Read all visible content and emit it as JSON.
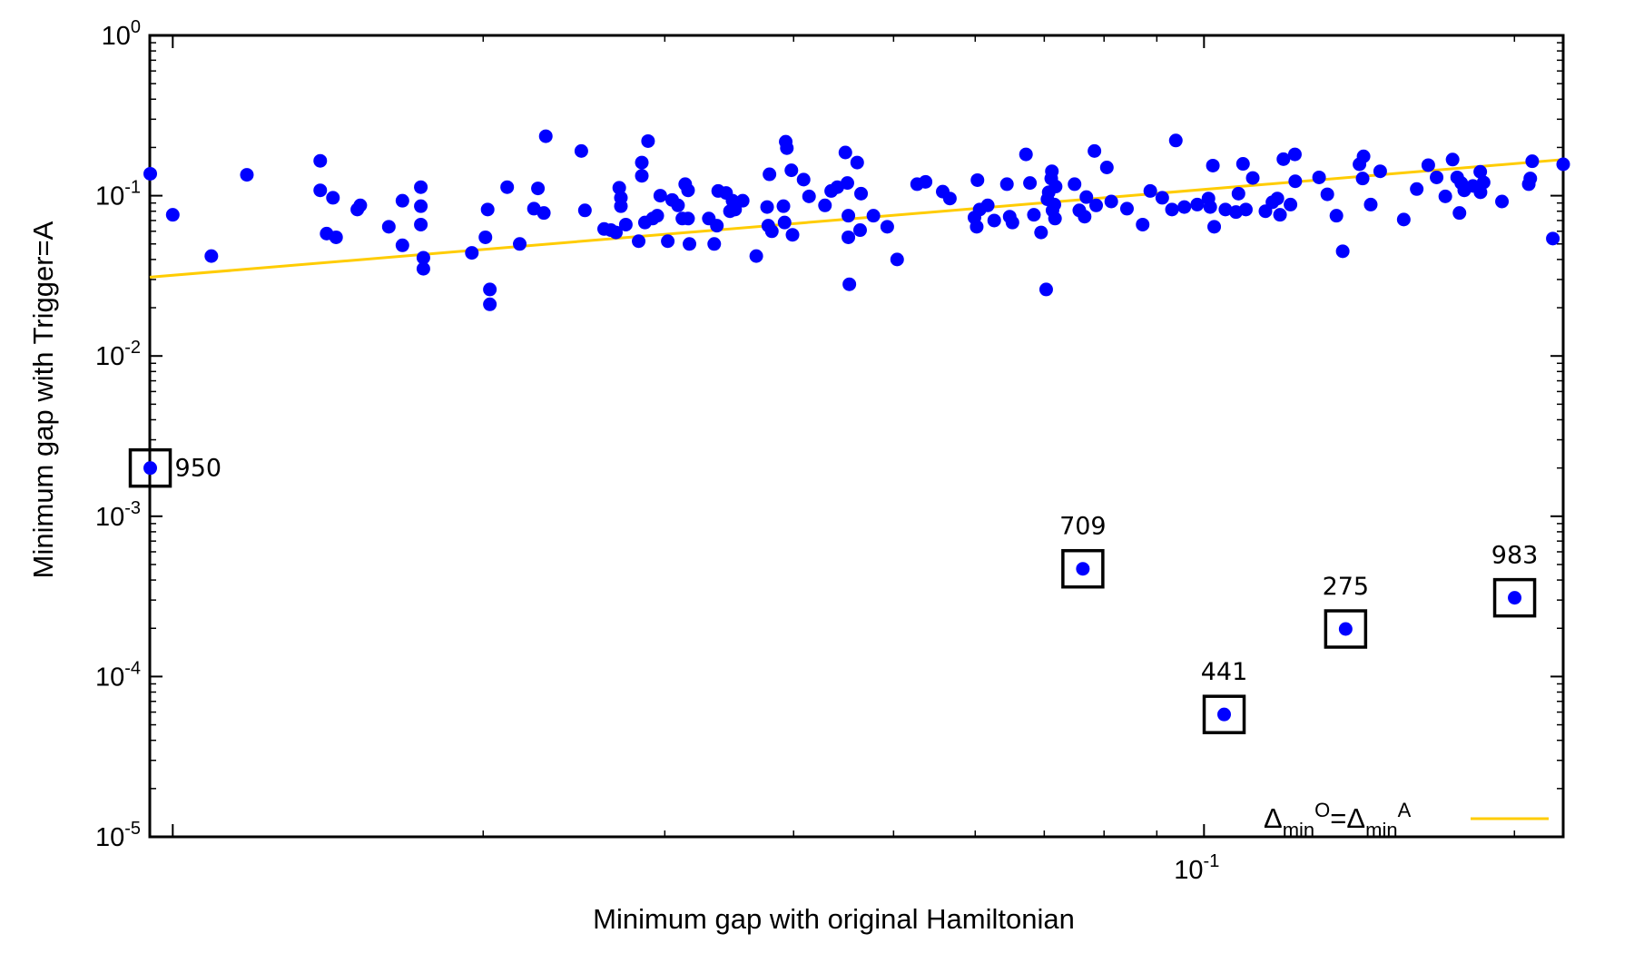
{
  "chart_data": {
    "type": "scatter",
    "title": "",
    "xlabel": "Minimum gap with original Hamiltonian",
    "ylabel": "Minimum gap with Trigger=A",
    "xscale": "log",
    "yscale": "log",
    "xlim": [
      0.0095,
      0.223
    ],
    "ylim": [
      1e-05,
      1
    ],
    "x_ticks": [
      {
        "base": "10",
        "exp": "-1",
        "value": 0.1
      }
    ],
    "y_ticks": [
      {
        "base": "10",
        "exp": "0",
        "value": 1
      },
      {
        "base": "10",
        "exp": "-1",
        "value": 0.1
      },
      {
        "base": "10",
        "exp": "-2",
        "value": 0.01
      },
      {
        "base": "10",
        "exp": "-3",
        "value": 0.001
      },
      {
        "base": "10",
        "exp": "-4",
        "value": 0.0001
      },
      {
        "base": "10",
        "exp": "-5",
        "value": 1e-05
      }
    ],
    "grid": false,
    "series": [
      {
        "marker": "circle",
        "color": "#0000ff",
        "points": [
          [
            0.00951,
            0.137
          ],
          [
            0.01,
            0.076
          ],
          [
            0.0109,
            0.042
          ],
          [
            0.0118,
            0.135
          ],
          [
            0.0139,
            0.165
          ],
          [
            0.0139,
            0.108
          ],
          [
            0.0141,
            0.058
          ],
          [
            0.0143,
            0.097
          ],
          [
            0.0144,
            0.055
          ],
          [
            0.0151,
            0.082
          ],
          [
            0.0152,
            0.087
          ],
          [
            0.0162,
            0.064
          ],
          [
            0.0167,
            0.093
          ],
          [
            0.0167,
            0.049
          ],
          [
            0.0174,
            0.113
          ],
          [
            0.0174,
            0.086
          ],
          [
            0.0174,
            0.066
          ],
          [
            0.0175,
            0.041
          ],
          [
            0.0175,
            0.035
          ],
          [
            0.0195,
            0.044
          ],
          [
            0.0201,
            0.055
          ],
          [
            0.0202,
            0.082
          ],
          [
            0.0203,
            0.026
          ],
          [
            0.0203,
            0.021
          ],
          [
            0.0211,
            0.113
          ],
          [
            0.0217,
            0.05
          ],
          [
            0.0224,
            0.083
          ],
          [
            0.0226,
            0.111
          ],
          [
            0.0229,
            0.078
          ],
          [
            0.023,
            0.235
          ],
          [
            0.0249,
            0.19
          ],
          [
            0.0251,
            0.081
          ],
          [
            0.0262,
            0.062
          ],
          [
            0.0266,
            0.061
          ],
          [
            0.0269,
            0.059
          ],
          [
            0.0271,
            0.112
          ],
          [
            0.0272,
            0.097
          ],
          [
            0.0272,
            0.086
          ],
          [
            0.0275,
            0.066
          ],
          [
            0.0283,
            0.052
          ],
          [
            0.0285,
            0.161
          ],
          [
            0.0285,
            0.133
          ],
          [
            0.0287,
            0.068
          ],
          [
            0.0289,
            0.219
          ],
          [
            0.0292,
            0.072
          ],
          [
            0.0295,
            0.075
          ],
          [
            0.0297,
            0.1
          ],
          [
            0.0302,
            0.052
          ],
          [
            0.0305,
            0.094
          ],
          [
            0.0309,
            0.087
          ],
          [
            0.0312,
            0.072
          ],
          [
            0.0314,
            0.118
          ],
          [
            0.0316,
            0.108
          ],
          [
            0.0316,
            0.072
          ],
          [
            0.0317,
            0.05
          ],
          [
            0.0331,
            0.072
          ],
          [
            0.0335,
            0.05
          ],
          [
            0.0337,
            0.065
          ],
          [
            0.0338,
            0.107
          ],
          [
            0.0344,
            0.104
          ],
          [
            0.0347,
            0.08
          ],
          [
            0.0349,
            0.093
          ],
          [
            0.0351,
            0.082
          ],
          [
            0.0357,
            0.093
          ],
          [
            0.0368,
            0.042
          ],
          [
            0.0377,
            0.085
          ],
          [
            0.0378,
            0.065
          ],
          [
            0.0379,
            0.136
          ],
          [
            0.0381,
            0.06
          ],
          [
            0.0391,
            0.086
          ],
          [
            0.0392,
            0.068
          ],
          [
            0.0393,
            0.217
          ],
          [
            0.0394,
            0.198
          ],
          [
            0.0398,
            0.144
          ],
          [
            0.0399,
            0.057
          ],
          [
            0.0409,
            0.126
          ],
          [
            0.0414,
            0.099
          ],
          [
            0.0429,
            0.087
          ],
          [
            0.0435,
            0.107
          ],
          [
            0.0441,
            0.113
          ],
          [
            0.0449,
            0.186
          ],
          [
            0.0451,
            0.12
          ],
          [
            0.0452,
            0.075
          ],
          [
            0.0452,
            0.055
          ],
          [
            0.0453,
            0.028
          ],
          [
            0.0461,
            0.161
          ],
          [
            0.0464,
            0.061
          ],
          [
            0.0465,
            0.103
          ],
          [
            0.0478,
            0.075
          ],
          [
            0.0493,
            0.064
          ],
          [
            0.0504,
            0.04
          ],
          [
            0.0527,
            0.118
          ],
          [
            0.0537,
            0.122
          ],
          [
            0.0558,
            0.106
          ],
          [
            0.0567,
            0.096
          ],
          [
            0.0599,
            0.073
          ],
          [
            0.0602,
            0.064
          ],
          [
            0.0603,
            0.125
          ],
          [
            0.0606,
            0.082
          ],
          [
            0.0617,
            0.087
          ],
          [
            0.0626,
            0.07
          ],
          [
            0.0644,
            0.118
          ],
          [
            0.0648,
            0.074
          ],
          [
            0.0652,
            0.068
          ],
          [
            0.0672,
            0.181
          ],
          [
            0.0678,
            0.12
          ],
          [
            0.0684,
            0.076
          ],
          [
            0.0695,
            0.059
          ],
          [
            0.0703,
            0.026
          ],
          [
            0.0705,
            0.095
          ],
          [
            0.0707,
            0.105
          ],
          [
            0.0711,
            0.128
          ],
          [
            0.0712,
            0.142
          ],
          [
            0.0713,
            0.081
          ],
          [
            0.0716,
            0.088
          ],
          [
            0.0717,
            0.072
          ],
          [
            0.0718,
            0.114
          ],
          [
            0.0749,
            0.118
          ],
          [
            0.0757,
            0.081
          ],
          [
            0.0766,
            0.074
          ],
          [
            0.0769,
            0.098
          ],
          [
            0.0783,
            0.19
          ],
          [
            0.0786,
            0.087
          ],
          [
            0.0805,
            0.15
          ],
          [
            0.0813,
            0.092
          ],
          [
            0.0842,
            0.083
          ],
          [
            0.0872,
            0.066
          ],
          [
            0.0887,
            0.107
          ],
          [
            0.0911,
            0.097
          ],
          [
            0.0931,
            0.082
          ],
          [
            0.0939,
            0.221
          ],
          [
            0.0957,
            0.085
          ],
          [
            0.0985,
            0.088
          ],
          [
            0.101,
            0.096
          ],
          [
            0.1014,
            0.085
          ],
          [
            0.102,
            0.154
          ],
          [
            0.1023,
            0.064
          ],
          [
            0.1049,
            0.082
          ],
          [
            0.1074,
            0.079
          ],
          [
            0.108,
            0.103
          ],
          [
            0.1091,
            0.158
          ],
          [
            0.1098,
            0.082
          ],
          [
            0.1115,
            0.129
          ],
          [
            0.1147,
            0.08
          ],
          [
            0.1165,
            0.091
          ],
          [
            0.1178,
            0.096
          ],
          [
            0.1185,
            0.076
          ],
          [
            0.1194,
            0.169
          ],
          [
            0.1213,
            0.088
          ],
          [
            0.1225,
            0.181
          ],
          [
            0.1226,
            0.123
          ],
          [
            0.1293,
            0.13
          ],
          [
            0.1317,
            0.102
          ],
          [
            0.1344,
            0.075
          ],
          [
            0.1363,
            0.045
          ],
          [
            0.1415,
            0.157
          ],
          [
            0.1425,
            0.128
          ],
          [
            0.1428,
            0.176
          ],
          [
            0.1451,
            0.088
          ],
          [
            0.1482,
            0.142
          ],
          [
            0.1562,
            0.071
          ],
          [
            0.1608,
            0.11
          ],
          [
            0.165,
            0.155
          ],
          [
            0.1681,
            0.13
          ],
          [
            0.1714,
            0.099
          ],
          [
            0.1742,
            0.168
          ],
          [
            0.176,
            0.13
          ],
          [
            0.1769,
            0.078
          ],
          [
            0.1776,
            0.12
          ],
          [
            0.1788,
            0.108
          ],
          [
            0.1823,
            0.115
          ],
          [
            0.1853,
            0.141
          ],
          [
            0.1854,
            0.105
          ],
          [
            0.1867,
            0.121
          ],
          [
            0.1945,
            0.092
          ],
          [
            0.2065,
            0.118
          ],
          [
            0.2072,
            0.128
          ],
          [
            0.2081,
            0.164
          ],
          [
            0.2179,
            0.054
          ],
          [
            0.223,
            0.157
          ]
        ]
      },
      {
        "name": "ΔminO=ΔminA",
        "legend_parts": {
          "delta": "Δ",
          "sub": "min",
          "sup1": "O",
          "eq": "=",
          "sup2": "A"
        },
        "type": "line",
        "color": "#ffcc00",
        "x": [
          0.0095,
          0.223
        ],
        "y": [
          0.031,
          0.168
        ]
      }
    ],
    "annotations": [
      {
        "text": "950",
        "x": 0.00951,
        "y": 0.002,
        "boxed": true,
        "label_pos": "right"
      },
      {
        "text": "709",
        "x": 0.0763,
        "y": 0.00047,
        "boxed": true,
        "label_pos": "above"
      },
      {
        "text": "441",
        "x": 0.1046,
        "y": 5.8e-05,
        "boxed": true,
        "label_pos": "above"
      },
      {
        "text": "275",
        "x": 0.1372,
        "y": 0.000198,
        "boxed": true,
        "label_pos": "above"
      },
      {
        "text": "983",
        "x": 0.2001,
        "y": 0.00031,
        "boxed": true,
        "label_pos": "above"
      }
    ],
    "legend": {
      "position": "bottom-right"
    }
  }
}
